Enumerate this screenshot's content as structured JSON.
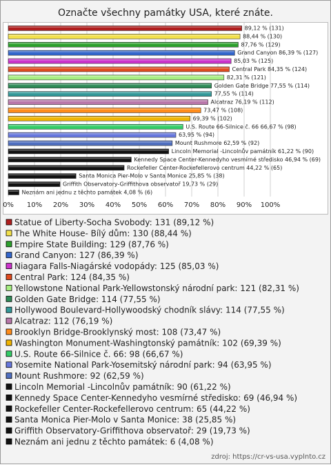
{
  "chart_data": {
    "type": "bar",
    "orientation": "horizontal",
    "title": "Označte všechny památky USA, které znáte.",
    "values": [
      89.12,
      88.44,
      87.76,
      86.39,
      85.03,
      84.35,
      82.31,
      77.55,
      77.55,
      76.19,
      73.47,
      69.39,
      66.67,
      63.95,
      62.59,
      61.22,
      46.94,
      44.22,
      25.85,
      19.73,
      4.08
    ],
    "value_labels": [
      "89,12 % (131)",
      "88,44 % (130)",
      "87,76 % (129)",
      "Grand Canyon 86,39 % (127)",
      "85,03 % (125)",
      "Central Park 84,35 % (124)",
      "82,31 % (121)",
      "Golden Gate Bridge 77,55 % (114)",
      "77,55 % (114)",
      "Alcatraz 76,19 % (112)",
      "73,47 % (108)",
      "69,39 % (102)",
      "U.S. Route 66-Silnice č. 66 66,67 % (98)",
      "63,95 % (94)",
      "Mount Rushmore 62,59 % (92)",
      "Lincoln Memorial -Lincolnův památník 61,22 % (90)",
      "Kennedy Space Center-Kennedyho vesmírné středisko 46,94 % (69)",
      "Rockefeller Center-Rockefellerovo centrum 44,22 % (65)",
      "Santa Monica Pier-Molo v Santa Monice 25,85 % (38)",
      "Griffith Observatory-Griffithova observatoř 19,73 % (29)",
      "Neznám ani jednu z těchto památek 4,08 % (6)"
    ],
    "legend_labels": [
      "Statue of Liberty-Socha Svobody: 131 (89,12 %)",
      "The White House- Bílý dům: 130 (88,44 %)",
      "Empire State Building: 129 (87,76 %)",
      "Grand Canyon: 127 (86,39 %)",
      "Niagara Falls-Niagárské vodopády: 125 (85,03 %)",
      "Central Park: 124 (84,35 %)",
      "Yellowstone National Park-Yellowstonský národní park: 121 (82,31 %)",
      "Golden Gate Bridge: 114 (77,55 %)",
      "Hollywood Boulevard-Hollywoodský chodník slávy: 114 (77,55 %)",
      "Alcatraz: 112 (76,19 %)",
      "Brooklyn Bridge-Brooklynský most: 108 (73,47 %)",
      "Washington Monument-Washingtonský památník: 102 (69,39 %)",
      "U.S. Route 66-Silnice č. 66: 98 (66,67 %)",
      "Yosemite National Park-Yosemitský národní park: 94 (63,95 %)",
      "Mount Rushmore: 92 (62,59 %)",
      "Lincoln Memorial -Lincolnův památník: 90 (61,22 %)",
      "Kennedy Space Center-Kennedyho vesmírné středisko: 69 (46,94 %)",
      "Rockefeller Center-Rockefellerovo centrum: 65 (44,22 %)",
      "Santa Monica Pier-Molo v Santa Monice: 38 (25,85 %)",
      "Griffith Observatory-Griffithova observatoř: 29 (19,73 %)",
      "Neznám ani jednu z těchto památek: 6 (4,08 %)"
    ],
    "colors": [
      "#b01e1e",
      "#f2e04a",
      "#2ca02c",
      "#3366cc",
      "#cc33cc",
      "#e04a1e",
      "#a6ee80",
      "#2e8b57",
      "#339999",
      "#b877aa",
      "#ff8c1a",
      "#f0b400",
      "#33cc66",
      "#6677dd",
      "#4f6fc0",
      "#111111",
      "#111111",
      "#111111",
      "#111111",
      "#111111",
      "#111111"
    ],
    "xlim": [
      0,
      100
    ],
    "xticks": [
      {
        "value": 0,
        "label": "0%"
      },
      {
        "value": 10,
        "label": "10%"
      },
      {
        "value": 20,
        "label": "20%"
      },
      {
        "value": 30,
        "label": "30%"
      },
      {
        "value": 40,
        "label": "40%"
      },
      {
        "value": 50,
        "label": "50%"
      },
      {
        "value": 60,
        "label": "60%"
      },
      {
        "value": 70,
        "label": "70%"
      },
      {
        "value": 80,
        "label": "80%"
      },
      {
        "value": 90,
        "label": "90%"
      },
      {
        "value": 100,
        "label": "100%"
      }
    ],
    "grid": true,
    "source": "zdroj: https://cr-vs-usa.vyplnto.cz"
  }
}
